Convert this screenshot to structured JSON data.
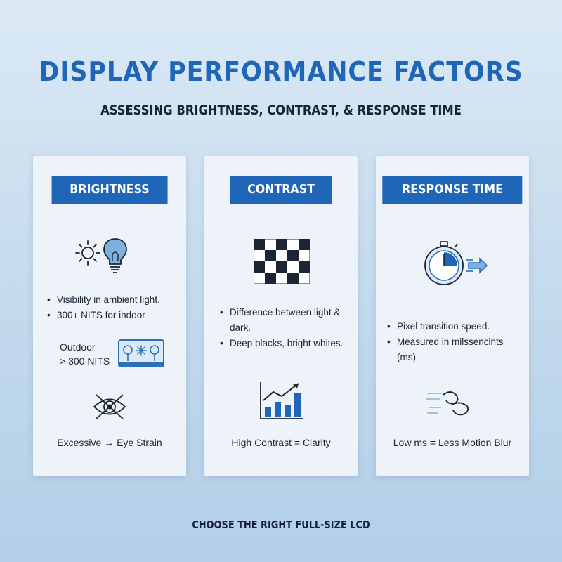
{
  "header": {
    "title": "DISPLAY PERFORMANCE FACTORS",
    "subtitle": "ASSESSING BRIGHTNESS, CONTRAST, & RESPONSE TIME"
  },
  "cards": [
    {
      "label": "BRIGHTNESS",
      "bullets": [
        "Visibility in ambient light.",
        "300+ NITS for indoor"
      ],
      "outdoor_line1": "Outdoor",
      "outdoor_line2": "> 300 NITS",
      "caption": "Excessive → Eye Strain",
      "icons": [
        "sun-icon",
        "lightbulb-icon",
        "outdoor-screen-icon",
        "eye-strain-icon"
      ]
    },
    {
      "label": "CONTRAST",
      "bullets": [
        "Difference between light & dark.",
        "Deep blacks, bright whites."
      ],
      "caption": "High Contrast = Clarity",
      "icons": [
        "checkerboard-icon",
        "bar-chart-trend-icon"
      ]
    },
    {
      "label": "RESPONSE TIME",
      "bullets": [
        "Pixel transition speed.",
        "Measured in milssencints (ms)"
      ],
      "caption": "Low ms = Less Motion Blur",
      "icons": [
        "stopwatch-icon",
        "motion-blur-icon"
      ]
    }
  ],
  "footer": "CHOOSE THE RIGHT FULL-SIZE LCD",
  "colors": {
    "accent": "#1f66b8",
    "card": "#eef3f9",
    "text": "#1b2533"
  }
}
